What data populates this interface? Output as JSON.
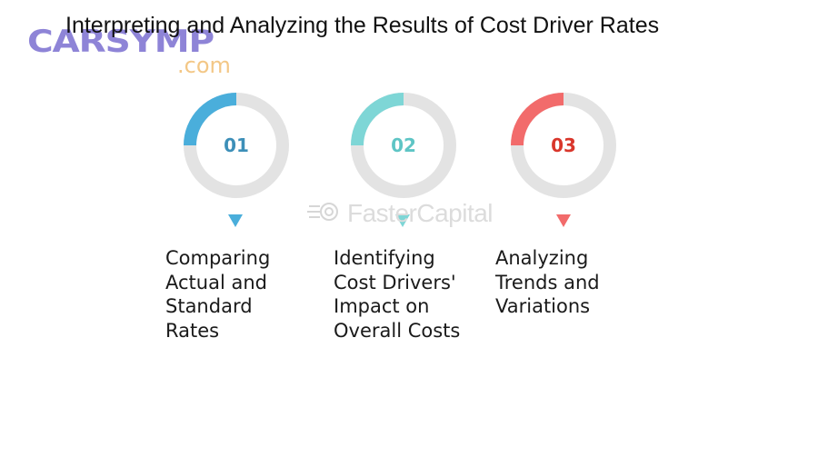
{
  "title": "Interpreting and Analyzing the Results of Cost Driver Rates",
  "logo": {
    "main": "CARSYMP",
    "sub": ".com"
  },
  "watermark": "FasterCapital",
  "colors": {
    "ring_track": "#e3e3e3",
    "step1": "#4aaedb",
    "step2": "#7ed6d6",
    "step3": "#f26b6b",
    "step1_text": "#3d8fb8",
    "step2_text": "#5ec5c5",
    "step3_text": "#d9362b"
  },
  "steps": [
    {
      "number": "01",
      "lines": [
        "Comparing",
        "Actual and",
        "Standard",
        "Rates"
      ],
      "color_key": "step1",
      "progress": 0.25
    },
    {
      "number": "02",
      "lines": [
        "Identifying",
        "Cost Drivers'",
        "Impact on",
        "Overall Costs"
      ],
      "color_key": "step2",
      "progress": 0.25
    },
    {
      "number": "03",
      "lines": [
        "Analyzing",
        "Trends and",
        "Variations"
      ],
      "color_key": "step3",
      "progress": 0.25
    }
  ]
}
